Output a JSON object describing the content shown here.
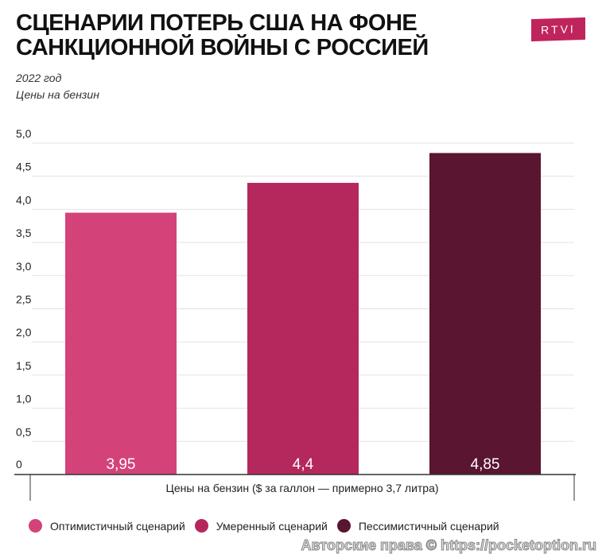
{
  "header": {
    "title_line1": "СЦЕНАРИИ ПОТЕРЬ США НА ФОНЕ",
    "title_line2": "САНКЦИОННОЙ ВОЙНЫ С РОССИЕЙ",
    "subtitle1": "2022 год",
    "subtitle2": "Цены на бензин",
    "logo": "RTVI"
  },
  "chart_data": {
    "type": "bar",
    "categories": [
      "Оптимистичный сценарий",
      "Умеренный сценарий",
      "Пессимистичный сценарий"
    ],
    "values": [
      3.95,
      4.4,
      4.85
    ],
    "data_labels": [
      "3,95",
      "4,4",
      "4,85"
    ],
    "colors": [
      "#d3437a",
      "#b5285d",
      "#5a1530"
    ],
    "xlabel": "Цены на бензин ($ за галлон — примерно 3,7 литра)",
    "ylim": [
      0,
      5
    ],
    "yticks": [
      "0",
      "0,5",
      "1,0",
      "1,5",
      "2,0",
      "2,5",
      "3,0",
      "3,5",
      "4,0",
      "4,5",
      "5,0"
    ],
    "grid": true,
    "legend": "bottom"
  },
  "watermark": "Авторские права © https://pocketoption.ru"
}
